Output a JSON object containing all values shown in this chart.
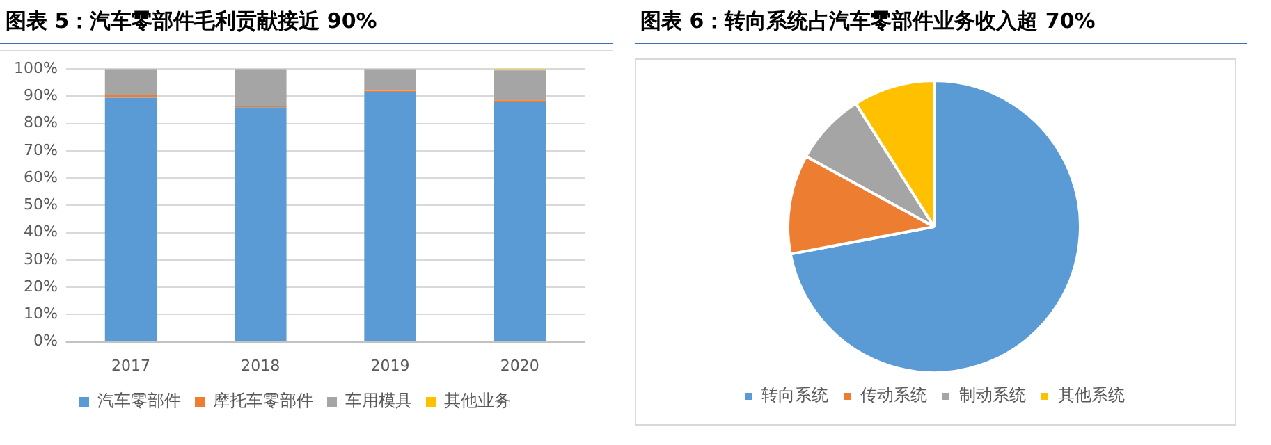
{
  "chart_data": [
    {
      "type": "bar",
      "title": "图表 5：汽车零部件毛利贡献接近 90%",
      "stacked": true,
      "categories": [
        "2017",
        "2018",
        "2019",
        "2020"
      ],
      "series": [
        {
          "name": "汽车零部件",
          "color": "#5b9bd5",
          "values": [
            89.5,
            86,
            91.5,
            88
          ]
        },
        {
          "name": "摩托车零部件",
          "color": "#ed7d31",
          "values": [
            1,
            0.5,
            0.5,
            0.5
          ]
        },
        {
          "name": "车用模具",
          "color": "#a5a5a5",
          "values": [
            9.5,
            13.5,
            8,
            11
          ]
        },
        {
          "name": "其他业务",
          "color": "#ffc000",
          "values": [
            0,
            0,
            0,
            0.5
          ]
        }
      ],
      "ylim": [
        0,
        100
      ],
      "yticks": [
        {
          "value": 0,
          "label": "0%"
        },
        {
          "value": 10,
          "label": "10%"
        },
        {
          "value": 20,
          "label": "20%"
        },
        {
          "value": 30,
          "label": "30%"
        },
        {
          "value": 40,
          "label": "40%"
        },
        {
          "value": 50,
          "label": "50%"
        },
        {
          "value": 60,
          "label": "60%"
        },
        {
          "value": 70,
          "label": "70%"
        },
        {
          "value": 80,
          "label": "80%"
        },
        {
          "value": 90,
          "label": "90%"
        },
        {
          "value": 100,
          "label": "100%"
        }
      ],
      "grid": "y",
      "legend": "bottom"
    },
    {
      "type": "pie",
      "title": "图表 6：转向系统占汽车零部件业务收入超 70%",
      "categories": [
        "转向系统",
        "传动系统",
        "制动系统",
        "其他系统"
      ],
      "values": [
        72,
        11,
        8,
        9
      ],
      "colors": [
        "#5b9bd5",
        "#ed7d31",
        "#a5a5a5",
        "#ffc000"
      ],
      "legend": "bottom"
    }
  ]
}
